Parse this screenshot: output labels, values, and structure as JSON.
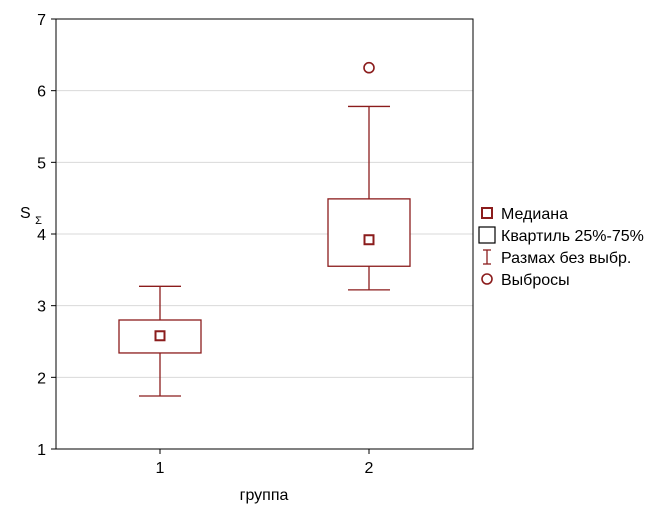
{
  "chart_data": {
    "type": "boxplot",
    "xlabel": "группа",
    "ylabel": "S",
    "ylabel_subscript": "Σ",
    "ylim": [
      1,
      7
    ],
    "yticks": [
      "1",
      "2",
      "3",
      "4",
      "5",
      "6",
      "7"
    ],
    "categories": [
      "1",
      "2"
    ],
    "groups": [
      {
        "category": "1",
        "median": 2.58,
        "q1": 2.34,
        "q3": 2.8,
        "whisker_low": 1.74,
        "whisker_high": 3.27,
        "outliers": []
      },
      {
        "category": "2",
        "median": 3.92,
        "q1": 3.55,
        "q3": 4.49,
        "whisker_low": 3.22,
        "whisker_high": 5.78,
        "outliers": [
          6.32
        ]
      }
    ],
    "grid": "horizontal",
    "legend_position": "right",
    "legend": [
      {
        "symbol": "median",
        "label": "Медиана"
      },
      {
        "symbol": "box",
        "label": "Квартиль 25%-75%"
      },
      {
        "symbol": "whisker",
        "label": "Размах без выбр."
      },
      {
        "symbol": "outlier",
        "label": "Выбросы"
      }
    ],
    "colors": {
      "series": "#8b1c1c",
      "grid": "#d9d9d9",
      "axis": "#000000"
    }
  }
}
